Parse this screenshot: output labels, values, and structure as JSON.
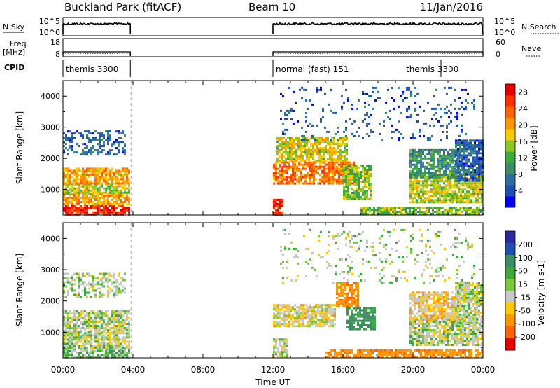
{
  "header": {
    "title": "Buckland Park (fitACF)",
    "beam": "Beam 10",
    "date": "11/Jan/2016"
  },
  "strips": {
    "nsky_label": "N.Sky",
    "nsky_ticks": [
      "10^5",
      "10^0"
    ],
    "nsearch_label": "N.Search",
    "nsearch_ticks": [
      "10^5",
      "10^0"
    ],
    "freq_label": "Freq.",
    "freq_unit": "[MHz]",
    "freq_ticks": [
      "18",
      "8"
    ],
    "nave_label": "Nave",
    "nave_ticks": [
      "60",
      "0"
    ],
    "cpid_label": "CPID",
    "cpid_segments": [
      {
        "start_hour": 0.0,
        "end_hour": 3.85,
        "label": "themis 3300"
      },
      {
        "start_hour": 12.0,
        "end_hour": 21.6,
        "label": "normal (fast) 151"
      },
      {
        "start_hour": 21.6,
        "end_hour": 24.0,
        "label": "themis 3300"
      }
    ],
    "data_gap_hours": [
      3.85,
      12.0
    ]
  },
  "chart_data": [
    {
      "type": "heatmap",
      "name": "power",
      "xlabel": "Time UT",
      "ylabel": "Slant Range [km]",
      "xlim": [
        0,
        24
      ],
      "ylim": [
        180,
        4500
      ],
      "x_ticks": [
        "00:00",
        "04:00",
        "08:00",
        "12:00",
        "16:00",
        "20:00",
        "00:00"
      ],
      "y_ticks": [
        1000,
        2000,
        3000,
        4000
      ],
      "colorbar": {
        "label": "Power [dB]",
        "range": [
          0,
          30
        ],
        "ticks": [
          4,
          8,
          12,
          16,
          20,
          24,
          28
        ],
        "colors": [
          "#0000ff",
          "#1e50b4",
          "#2f6fa0",
          "#3c8c64",
          "#3caa3c",
          "#8cc81e",
          "#ffc800",
          "#ff9600",
          "#ff6400",
          "#ff3200",
          "#e60000"
        ]
      },
      "regions": [
        {
          "t": [
            0.0,
            3.8
          ],
          "r": [
            200,
            500
          ],
          "level": 27
        },
        {
          "t": [
            0.0,
            3.8
          ],
          "r": [
            500,
            900
          ],
          "level": 20
        },
        {
          "t": [
            0.0,
            3.8
          ],
          "r": [
            900,
            1200
          ],
          "level": 16
        },
        {
          "t": [
            0.0,
            3.8
          ],
          "r": [
            1200,
            1700
          ],
          "level": 20
        },
        {
          "t": [
            0.0,
            3.6
          ],
          "r": [
            2100,
            2900
          ],
          "level": 6
        },
        {
          "t": [
            12.0,
            12.6
          ],
          "r": [
            200,
            700
          ],
          "level": 27
        },
        {
          "t": [
            12.0,
            16.6
          ],
          "r": [
            1200,
            1900
          ],
          "level": 22
        },
        {
          "t": [
            12.2,
            16.2
          ],
          "r": [
            1900,
            2700
          ],
          "level": 17
        },
        {
          "t": [
            16.0,
            17.6
          ],
          "r": [
            700,
            1800
          ],
          "level": 14
        },
        {
          "t": [
            17.0,
            24.0
          ],
          "r": [
            200,
            450
          ],
          "level": 14
        },
        {
          "t": [
            19.8,
            24.0
          ],
          "r": [
            600,
            1500
          ],
          "level": 16
        },
        {
          "t": [
            19.8,
            22.6
          ],
          "r": [
            1400,
            2300
          ],
          "level": 10
        },
        {
          "t": [
            22.4,
            24.0
          ],
          "r": [
            1300,
            2600
          ],
          "level": 6
        },
        {
          "t": [
            12.4,
            23.5
          ],
          "r": [
            2600,
            4300
          ],
          "level": 5
        }
      ]
    },
    {
      "type": "heatmap",
      "name": "velocity",
      "xlabel": "Time UT",
      "ylabel": "Slant Range [km]",
      "xlim": [
        0,
        24
      ],
      "ylim": [
        180,
        4500
      ],
      "x_ticks": [
        "00:00",
        "04:00",
        "08:00",
        "12:00",
        "16:00",
        "20:00",
        "00:00"
      ],
      "y_ticks": [
        1000,
        2000,
        3000,
        4000
      ],
      "colorbar": {
        "label": "Velocity [m s-1]",
        "ticks": [
          200,
          100,
          50,
          15,
          -15,
          -50,
          -100,
          -200
        ],
        "colors": [
          "#2828a0",
          "#1e50b4",
          "#3c8c64",
          "#3caa3c",
          "#78c83c",
          "#c8c8c8",
          "#ffc800",
          "#ff9600",
          "#ff6400",
          "#e60000"
        ]
      },
      "regions": [
        {
          "t": [
            0.0,
            3.8
          ],
          "r": [
            200,
            500
          ],
          "level": 15
        },
        {
          "t": [
            0.0,
            3.8
          ],
          "r": [
            500,
            1000
          ],
          "level": 0
        },
        {
          "t": [
            0.0,
            3.8
          ],
          "r": [
            1000,
            1700
          ],
          "level": 0
        },
        {
          "t": [
            0.0,
            3.6
          ],
          "r": [
            2100,
            2900
          ],
          "level": 0
        },
        {
          "t": [
            12.0,
            12.8
          ],
          "r": [
            200,
            800
          ],
          "level": 0
        },
        {
          "t": [
            12.0,
            15.6
          ],
          "r": [
            1200,
            1900
          ],
          "level": -10
        },
        {
          "t": [
            15.6,
            16.8
          ],
          "r": [
            1800,
            2600
          ],
          "level": -60
        },
        {
          "t": [
            16.2,
            17.8
          ],
          "r": [
            1100,
            1800
          ],
          "level": 40
        },
        {
          "t": [
            15.0,
            24.0
          ],
          "r": [
            200,
            450
          ],
          "level": -60
        },
        {
          "t": [
            19.8,
            24.0
          ],
          "r": [
            600,
            1500
          ],
          "level": 0
        },
        {
          "t": [
            19.8,
            22.6
          ],
          "r": [
            1400,
            2300
          ],
          "level": -20
        },
        {
          "t": [
            22.4,
            24.0
          ],
          "r": [
            1300,
            2600
          ],
          "level": 0
        },
        {
          "t": [
            12.4,
            23.5
          ],
          "r": [
            2600,
            4300
          ],
          "level": 0
        }
      ]
    }
  ]
}
